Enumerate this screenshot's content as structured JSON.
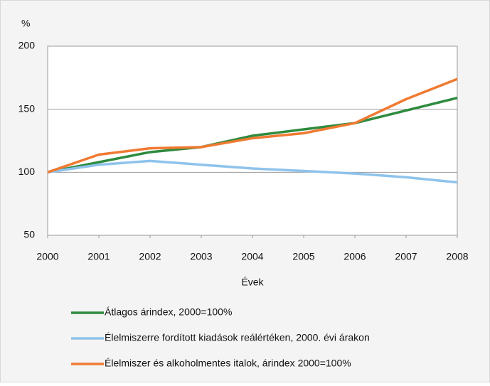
{
  "chart_data": {
    "type": "line",
    "y_axis_label": "%",
    "x_axis_label": "Évek",
    "x": [
      2000,
      2001,
      2002,
      2003,
      2004,
      2005,
      2006,
      2007,
      2008
    ],
    "xlim": [
      2000,
      2008
    ],
    "xticks": [
      2000,
      2001,
      2002,
      2003,
      2004,
      2005,
      2006,
      2007,
      2008
    ],
    "ylim": [
      50,
      200
    ],
    "yticks": [
      50,
      100,
      150,
      200
    ],
    "grid": true,
    "legend": "bottom",
    "series": [
      {
        "name": "Átlagos árindex, 2000=100%",
        "color": "#2e8b3e",
        "values": [
          100,
          108,
          116,
          120,
          129,
          134,
          139,
          149,
          159
        ]
      },
      {
        "name": "Élelmiszerre fordított kiadások reálértéken, 2000. évi árakon",
        "color": "#8ec3ec",
        "values": [
          100,
          106,
          109,
          106,
          103,
          101,
          99,
          96,
          92
        ]
      },
      {
        "name": "Élelmiszer és alkoholmentes italok, árindex 2000=100%",
        "color": "#f07a32",
        "values": [
          100,
          114,
          119,
          120,
          127,
          131,
          139,
          158,
          174
        ]
      }
    ]
  }
}
